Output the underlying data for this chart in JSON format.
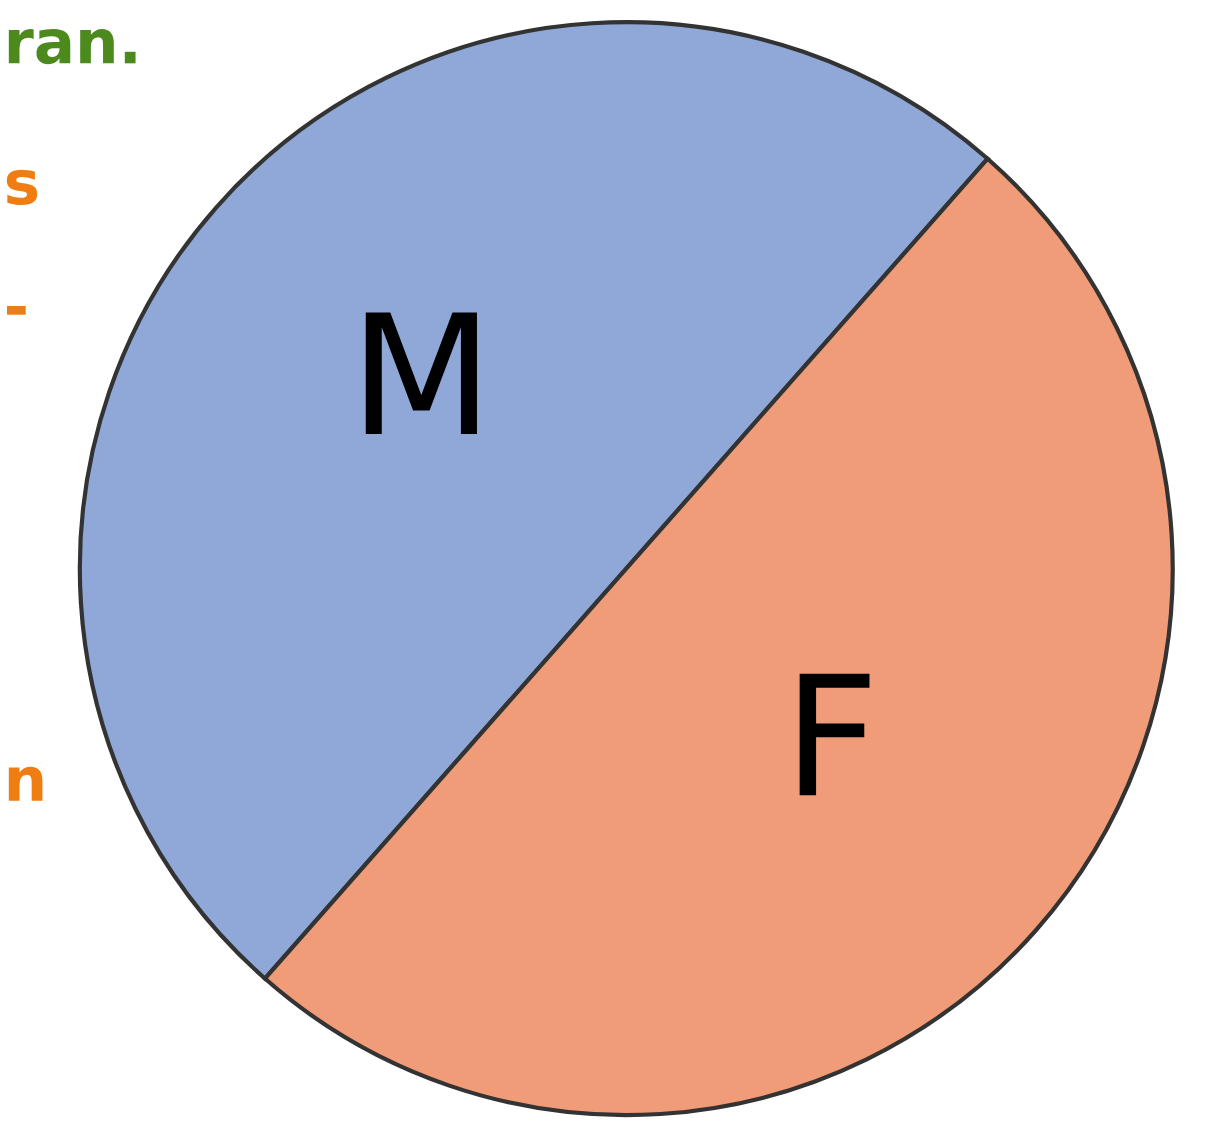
{
  "chart_data": {
    "type": "pie",
    "categories": [
      "M",
      "F"
    ],
    "values": [
      50,
      50
    ],
    "colors": [
      "#8fa8d8",
      "#f09c78"
    ],
    "annotations": [
      "ran.",
      "s",
      "-",
      "n"
    ]
  }
}
